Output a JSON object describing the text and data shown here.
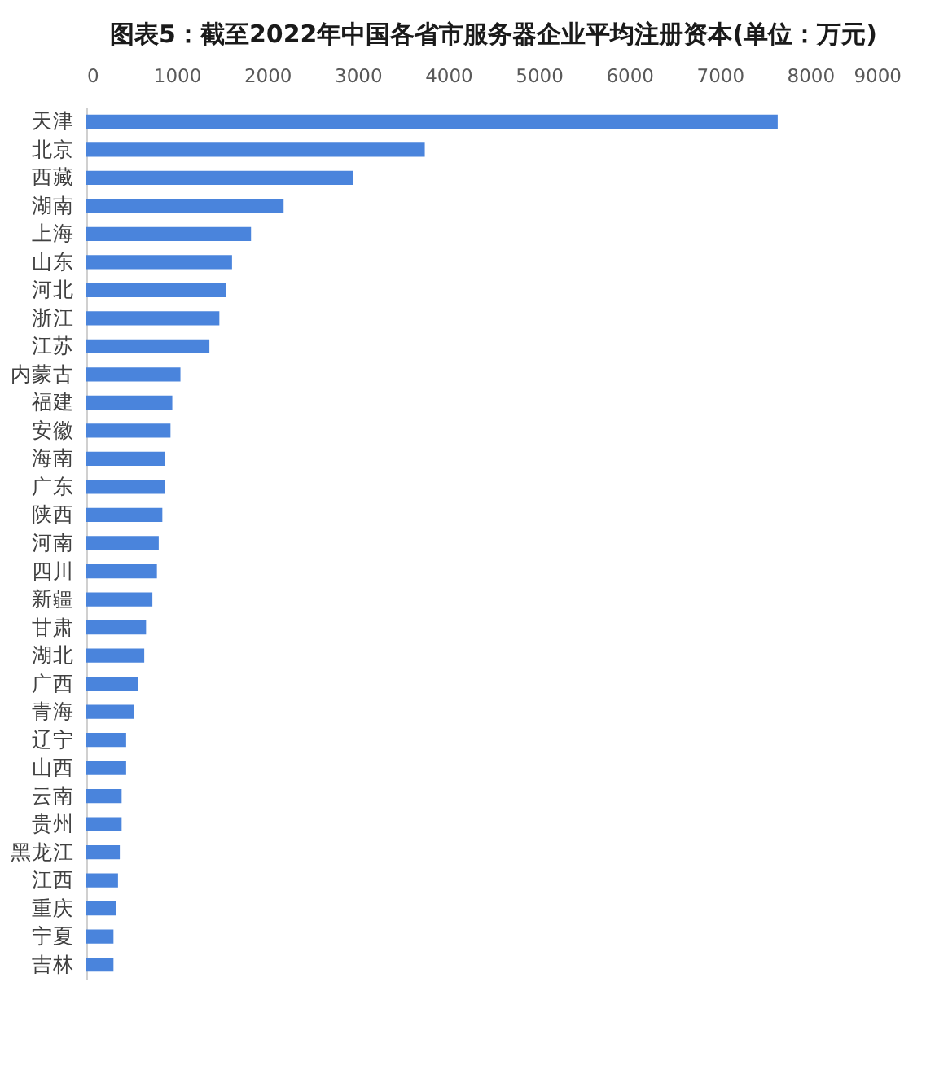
{
  "chart_data": {
    "type": "bar",
    "orientation": "horizontal",
    "title": "图表5：截至2022年中国各省市服务器企业平均注册资本(单位：万元)",
    "categories": [
      "天津",
      "北京",
      "西藏",
      "湖南",
      "上海",
      "山东",
      "河北",
      "浙江",
      "江苏",
      "内蒙古",
      "福建",
      "安徽",
      "海南",
      "广东",
      "陕西",
      "河南",
      "四川",
      "新疆",
      "甘肃",
      "湖北",
      "广西",
      "青海",
      "辽宁",
      "山西",
      "云南",
      "贵州",
      "黑龙江",
      "江西",
      "重庆",
      "宁夏",
      "吉林"
    ],
    "values": [
      7640,
      3740,
      2950,
      2180,
      1820,
      1610,
      1540,
      1470,
      1360,
      1040,
      950,
      930,
      870,
      870,
      840,
      800,
      780,
      730,
      660,
      640,
      570,
      530,
      440,
      440,
      390,
      390,
      370,
      350,
      330,
      300,
      300
    ],
    "color": "#4a84dc",
    "xlim": [
      0,
      9000
    ],
    "xticks": [
      0,
      1000,
      2000,
      3000,
      4000,
      5000,
      6000,
      7000,
      8000,
      9000
    ],
    "grid": false
  }
}
